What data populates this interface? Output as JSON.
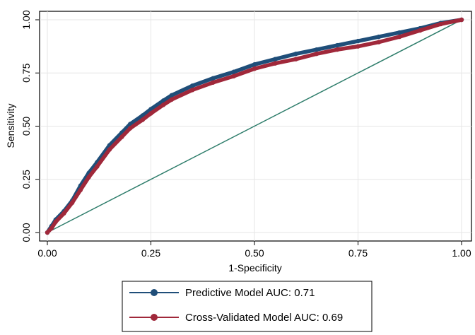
{
  "chart_data": {
    "type": "line",
    "title": "",
    "xlabel": "1-Specificity",
    "ylabel": "Sensitivity",
    "xlim": [
      0,
      1
    ],
    "ylim": [
      0,
      1
    ],
    "x_ticks": [
      "0.00",
      "0.25",
      "0.50",
      "0.75",
      "1.00"
    ],
    "y_ticks": [
      "0.00",
      "0.25",
      "0.50",
      "0.75",
      "1.00"
    ],
    "x_tick_values": [
      0,
      0.25,
      0.5,
      0.75,
      1
    ],
    "y_tick_values": [
      0,
      0.25,
      0.5,
      0.75,
      1
    ],
    "grid": true,
    "legend_position": "bottom",
    "series": [
      {
        "name": "Predictive Model AUC: 0.71",
        "color": "#1f4e79",
        "marker": "circle",
        "x": [
          0,
          0.01,
          0.02,
          0.04,
          0.06,
          0.08,
          0.1,
          0.12,
          0.15,
          0.18,
          0.2,
          0.23,
          0.25,
          0.28,
          0.3,
          0.35,
          0.4,
          0.45,
          0.5,
          0.55,
          0.6,
          0.65,
          0.7,
          0.75,
          0.8,
          0.85,
          0.9,
          0.95,
          1.0
        ],
        "y": [
          0,
          0.03,
          0.06,
          0.1,
          0.15,
          0.22,
          0.28,
          0.33,
          0.41,
          0.47,
          0.51,
          0.55,
          0.58,
          0.62,
          0.645,
          0.69,
          0.725,
          0.755,
          0.79,
          0.815,
          0.84,
          0.86,
          0.88,
          0.9,
          0.92,
          0.94,
          0.96,
          0.985,
          1.0
        ]
      },
      {
        "name": "Cross-Validated Model AUC: 0.69",
        "color": "#a0283a",
        "marker": "circle",
        "x": [
          0,
          0.01,
          0.02,
          0.04,
          0.06,
          0.08,
          0.1,
          0.12,
          0.15,
          0.18,
          0.2,
          0.23,
          0.25,
          0.28,
          0.3,
          0.35,
          0.4,
          0.45,
          0.5,
          0.55,
          0.6,
          0.65,
          0.7,
          0.75,
          0.8,
          0.85,
          0.9,
          0.95,
          1.0
        ],
        "y": [
          0,
          0.02,
          0.05,
          0.09,
          0.14,
          0.2,
          0.26,
          0.31,
          0.39,
          0.45,
          0.49,
          0.53,
          0.56,
          0.6,
          0.625,
          0.67,
          0.705,
          0.735,
          0.77,
          0.795,
          0.815,
          0.84,
          0.86,
          0.875,
          0.895,
          0.92,
          0.95,
          0.98,
          1.0
        ]
      },
      {
        "name": "",
        "color": "#2e7d6b",
        "marker": "none",
        "x": [
          0,
          1
        ],
        "y": [
          0,
          1
        ]
      }
    ]
  }
}
